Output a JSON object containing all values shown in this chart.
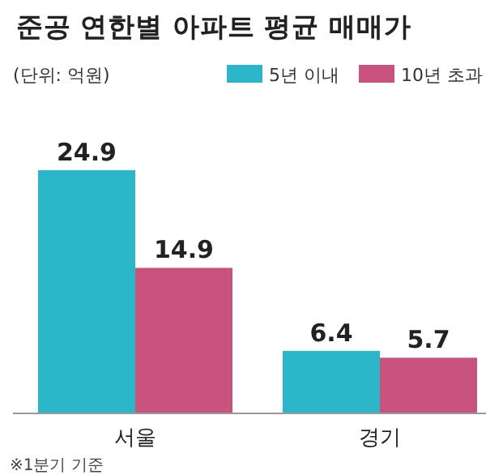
{
  "chart_data": {
    "type": "bar",
    "title": "준공 연한별 아파트 평균 매매가",
    "subtitle": "(단위: 억원)",
    "categories": [
      "서울",
      "경기"
    ],
    "series": [
      {
        "name": "5년 이내",
        "color": "#2bb6c9",
        "values": [
          24.9,
          6.4
        ]
      },
      {
        "name": "10년 초과",
        "color": "#c9527f",
        "values": [
          14.9,
          5.7
        ]
      }
    ],
    "data_labels": true,
    "legend": "top right",
    "annotations": [
      "※1분기 기준"
    ]
  }
}
